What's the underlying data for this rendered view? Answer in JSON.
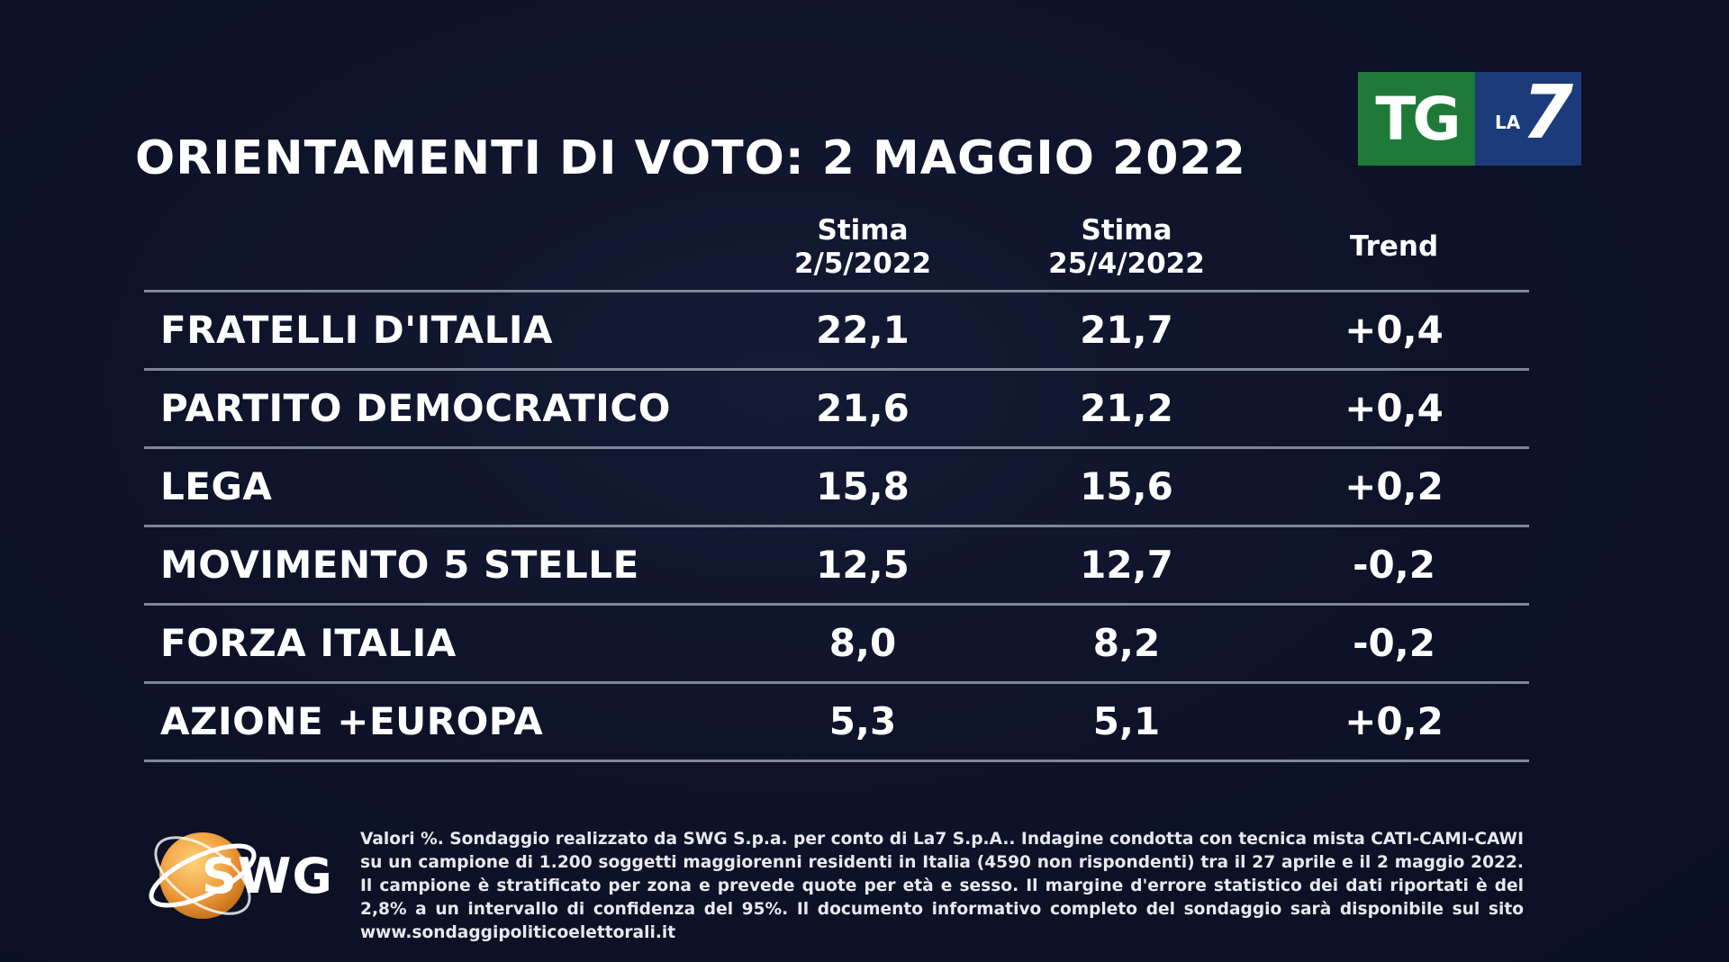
{
  "title": "ORIENTAMENTI DI VOTO: 2 MAGGIO 2022",
  "logo": {
    "tg_text": "TG",
    "la_text": "LA",
    "seven_text": "7",
    "tg_color": "#1f7a3a",
    "la7_color": "#1b3b7a"
  },
  "chart_data": {
    "type": "table",
    "title": "ORIENTAMENTI DI VOTO: 2 MAGGIO 2022",
    "columns": [
      {
        "line1": "Stima",
        "line2": "2/5/2022"
      },
      {
        "line1": "Stima",
        "line2": "25/4/2022"
      },
      {
        "line1": "Trend",
        "line2": ""
      }
    ],
    "rows": [
      {
        "party": "FRATELLI D'ITALIA",
        "stima_2_5": "22,1",
        "stima_25_4": "21,7",
        "trend": "+0,4"
      },
      {
        "party": "PARTITO DEMOCRATICO",
        "stima_2_5": "21,6",
        "stima_25_4": "21,2",
        "trend": "+0,4"
      },
      {
        "party": "LEGA",
        "stima_2_5": "15,8",
        "stima_25_4": "15,6",
        "trend": "+0,2"
      },
      {
        "party": "MOVIMENTO 5 STELLE",
        "stima_2_5": "12,5",
        "stima_25_4": "12,7",
        "trend": "-0,2"
      },
      {
        "party": "FORZA ITALIA",
        "stima_2_5": "8,0",
        "stima_25_4": "8,2",
        "trend": "-0,2"
      },
      {
        "party": "AZIONE +EUROPA",
        "stima_2_5": "5,3",
        "stima_25_4": "5,1",
        "trend": "+0,2"
      }
    ]
  },
  "swg": {
    "logo_text": "SWG",
    "globe_color": "#f0a040"
  },
  "footnote": "Valori %. Sondaggio realizzato da SWG S.p.a. per conto di La7 S.p.A.. Indagine condotta con tecnica mista CATI-CAMI-CAWI su un campione di 1.200 soggetti maggiorenni residenti in Italia (4590 non rispondenti) tra il 27 aprile e il 2 maggio 2022. Il campione è stratificato per zona e prevede quote per età e sesso. Il margine d'errore statistico dei dati riportati è del 2,8% a un intervallo di confidenza del 95%. Il documento informativo completo del sondaggio sarà disponibile sul sito www.sondaggipoliticoelettorali.it"
}
